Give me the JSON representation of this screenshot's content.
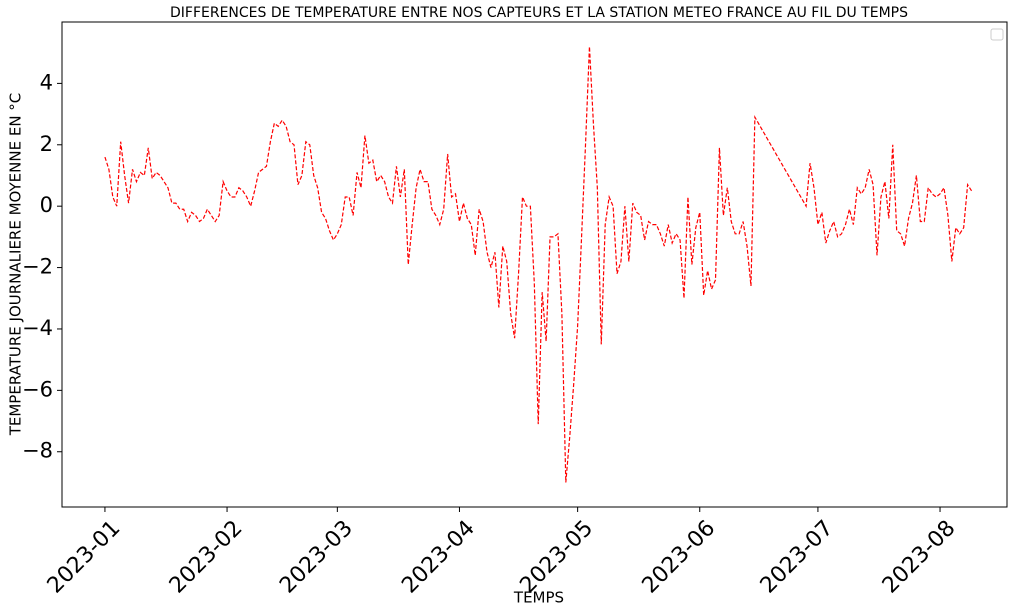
{
  "chart_data": {
    "type": "line",
    "title": "DIFFERENCES DE TEMPERATURE ENTRE NOS CAPTEURS ET LA STATION METEO FRANCE AU FIL DU TEMPS",
    "xlabel": "TEMPS",
    "ylabel": "TEMPERATURE JOURNALIERE MOYENNE EN °C",
    "x": [
      0,
      1,
      2,
      3,
      4,
      5,
      6,
      7,
      8,
      9,
      10,
      11,
      12,
      13,
      14,
      15,
      16,
      17,
      18,
      19,
      20,
      21,
      22,
      23,
      24,
      25,
      26,
      27,
      28,
      29,
      30,
      31,
      32,
      33,
      34,
      35,
      36,
      37,
      38,
      39,
      40,
      41,
      42,
      43,
      44,
      45,
      46,
      47,
      48,
      49,
      50,
      51,
      52,
      53,
      54,
      55,
      56,
      57,
      58,
      59,
      60,
      61,
      62,
      63,
      64,
      65,
      66,
      67,
      68,
      69,
      70,
      71,
      72,
      73,
      74,
      75,
      76,
      77,
      78,
      79,
      80,
      81,
      82,
      83,
      84,
      85,
      86,
      87,
      88,
      89,
      90,
      91,
      92,
      93,
      94,
      95,
      96,
      97,
      98,
      99,
      100,
      101,
      102,
      103,
      104,
      105,
      106,
      107,
      108,
      109,
      110,
      111,
      112,
      113,
      114,
      115,
      116,
      117,
      118,
      119,
      120,
      121,
      122,
      123,
      124,
      125,
      126,
      127,
      128,
      129,
      130,
      131,
      132,
      133,
      134,
      135,
      136,
      137,
      138,
      139,
      140,
      141,
      142,
      143,
      144,
      145,
      146,
      147,
      148,
      149,
      150,
      151,
      152,
      153,
      154,
      155,
      156,
      157,
      158,
      159,
      160,
      161,
      162,
      163,
      164,
      165,
      178,
      179,
      180,
      181,
      182,
      183,
      184,
      185,
      186,
      187,
      188,
      189,
      190,
      191,
      192,
      193,
      194,
      195,
      196,
      197,
      198,
      199,
      200,
      201,
      202,
      203,
      204,
      205,
      206,
      207,
      208,
      209,
      210,
      211,
      212,
      213,
      214,
      215,
      216,
      217,
      218,
      219,
      220
    ],
    "series": [
      {
        "color": "#ff0000",
        "values": [
          1.6,
          1.2,
          0.3,
          0.0,
          2.1,
          1.0,
          0.1,
          1.2,
          0.8,
          1.1,
          1.0,
          1.9,
          0.9,
          1.1,
          1.0,
          0.8,
          0.6,
          0.1,
          0.1,
          -0.1,
          -0.1,
          -0.5,
          -0.2,
          -0.3,
          -0.5,
          -0.4,
          -0.1,
          -0.3,
          -0.5,
          -0.3,
          0.8,
          0.5,
          0.3,
          0.3,
          0.6,
          0.5,
          0.3,
          0.0,
          0.5,
          1.1,
          1.2,
          1.3,
          2.1,
          2.7,
          2.6,
          2.8,
          2.6,
          2.1,
          2.0,
          0.7,
          1.0,
          2.1,
          2.0,
          1.0,
          0.6,
          -0.2,
          -0.4,
          -0.8,
          -1.1,
          -0.9,
          -0.6,
          0.3,
          0.3,
          -0.3,
          1.1,
          0.6,
          2.3,
          1.4,
          1.5,
          0.8,
          1.0,
          0.8,
          0.3,
          0.1,
          1.3,
          0.3,
          1.2,
          -1.9,
          -0.6,
          0.6,
          1.2,
          0.8,
          0.8,
          -0.1,
          -0.3,
          -0.6,
          -0.1,
          1.7,
          0.3,
          0.4,
          -0.5,
          0.1,
          -0.4,
          -0.6,
          -1.6,
          -0.1,
          -0.5,
          -1.5,
          -2.0,
          -1.5,
          -3.3,
          -1.3,
          -1.8,
          -3.5,
          -4.3,
          -2.2,
          0.3,
          0.0,
          0.0,
          -2.5,
          -7.1,
          -2.8,
          -4.4,
          -1.0,
          -1.0,
          -0.9,
          -3.5,
          -9.0,
          -7.5,
          -5.8,
          -3.9,
          -1.0,
          2.0,
          5.2,
          2.7,
          0.6,
          -4.5,
          -0.6,
          0.3,
          0.0,
          -2.2,
          -1.8,
          0.0,
          -1.8,
          0.1,
          -0.2,
          -0.3,
          -1.1,
          -0.5,
          -0.6,
          -0.6,
          -0.9,
          -1.3,
          -0.6,
          -1.2,
          -0.9,
          -1.1,
          -3.0,
          0.3,
          -1.9,
          -0.7,
          -0.2,
          -2.9,
          -2.1,
          -2.7,
          -2.4,
          1.9,
          -0.3,
          0.6,
          -0.5,
          -0.9,
          -0.9,
          -0.5,
          -1.3,
          -2.6,
          2.9,
          0.0,
          1.4,
          0.6,
          -0.6,
          -0.2,
          -1.2,
          -0.8,
          -0.5,
          -1.0,
          -0.9,
          -0.6,
          -0.1,
          -0.6,
          0.6,
          0.4,
          0.6,
          1.2,
          0.7,
          -1.6,
          0.3,
          0.8,
          -0.4,
          2.0,
          -0.8,
          -0.9,
          -1.3,
          -0.4,
          0.1,
          1.0,
          -0.5,
          -0.5,
          0.6,
          0.4,
          0.3,
          0.4,
          0.6,
          -0.3,
          -1.8,
          -0.7,
          -0.9,
          -0.7,
          0.7,
          0.5
        ]
      }
    ],
    "xlim": [
      -10.9,
      229
    ],
    "xticks": [
      {
        "value": 0,
        "label": "2023-01"
      },
      {
        "value": 31,
        "label": "2023-02"
      },
      {
        "value": 59,
        "label": "2023-03"
      },
      {
        "value": 90,
        "label": "2023-04"
      },
      {
        "value": 120,
        "label": "2023-05"
      },
      {
        "value": 151,
        "label": "2023-06"
      },
      {
        "value": 181,
        "label": "2023-07"
      },
      {
        "value": 212,
        "label": "2023-08"
      }
    ],
    "ylim": [
      -9.8,
      6.0
    ],
    "yticks": [
      {
        "value": -8,
        "label": "−8"
      },
      {
        "value": -6,
        "label": "−6"
      },
      {
        "value": -4,
        "label": "−4"
      },
      {
        "value": -2,
        "label": "−2"
      },
      0,
      2,
      4
    ],
    "line_style": "dashed"
  }
}
